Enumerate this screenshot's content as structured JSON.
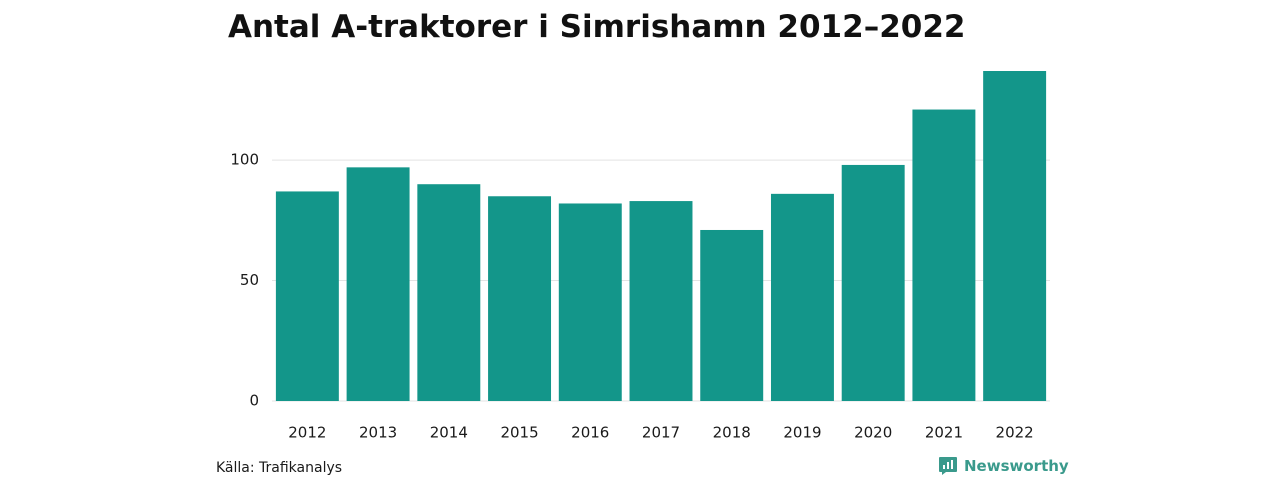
{
  "chart_data": {
    "type": "bar",
    "title": "Antal A-traktorer i Simrishamn 2012–2022",
    "xlabel": "",
    "ylabel": "",
    "categories": [
      "2012",
      "2013",
      "2014",
      "2015",
      "2016",
      "2017",
      "2018",
      "2019",
      "2020",
      "2021",
      "2022"
    ],
    "values": [
      87,
      97,
      90,
      85,
      82,
      83,
      71,
      86,
      98,
      121,
      137
    ],
    "ylim": [
      0,
      137
    ],
    "yticks": [
      "0",
      "50",
      "100"
    ],
    "grid": true,
    "legend": "none",
    "bar_color": "#13968a",
    "grid_color": "#e3e3e3"
  },
  "footer": {
    "source": "Källa: Trafikanalys",
    "brand": "Newsworthy",
    "brand_color": "#3a9a8c",
    "brand_icon": "bar-chart-bubble-icon"
  }
}
